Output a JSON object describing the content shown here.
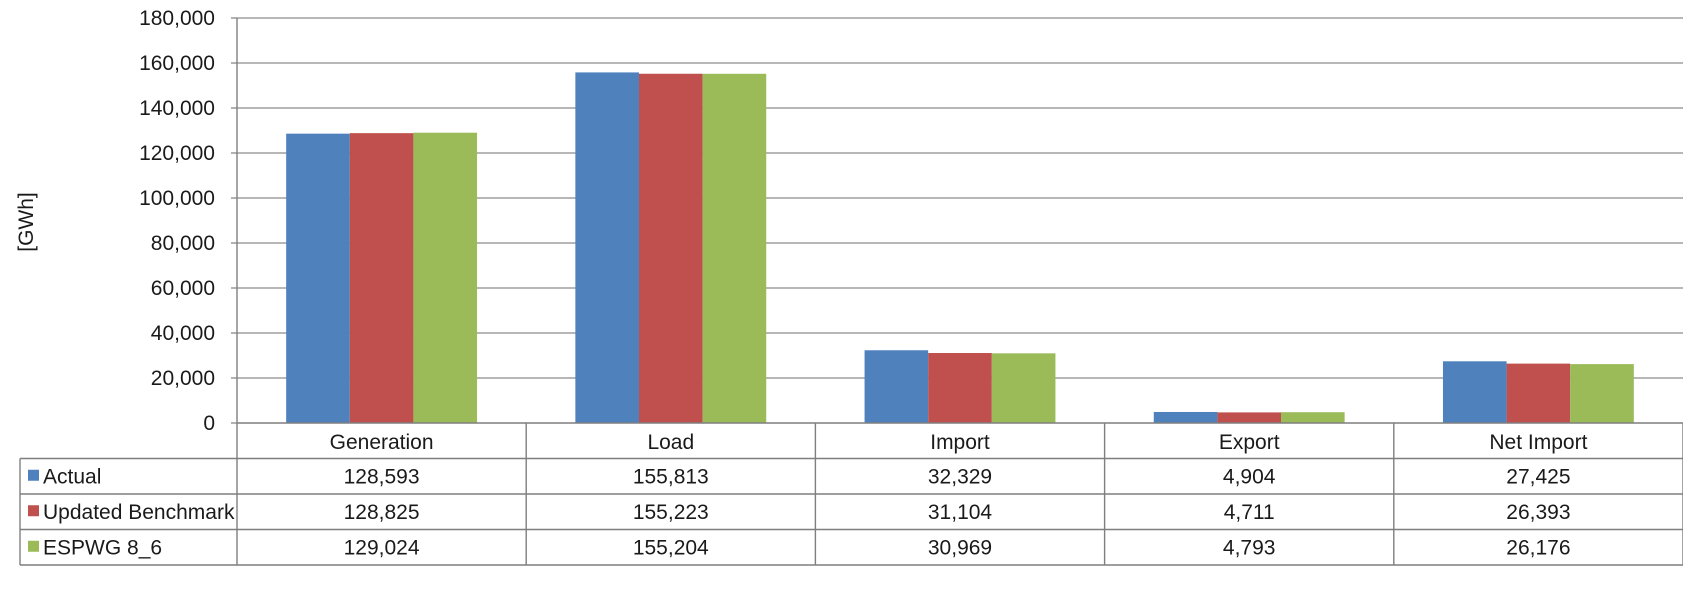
{
  "chart_data": {
    "type": "bar",
    "ylabel": "[GWh]",
    "ylim": [
      0,
      180000
    ],
    "ytick_step": 20000,
    "yticks": [
      "0",
      "20,000",
      "40,000",
      "60,000",
      "80,000",
      "100,000",
      "120,000",
      "140,000",
      "160,000",
      "180,000"
    ],
    "grid": true,
    "legend": "table-left",
    "categories": [
      "Generation",
      "Load",
      "Import",
      "Export",
      "Net Import"
    ],
    "series": [
      {
        "name": "Actual",
        "color": "#4F81BD",
        "values": [
          128593,
          155813,
          32329,
          4904,
          27425
        ],
        "labels": [
          "128,593",
          "155,813",
          "32,329",
          "4,904",
          "27,425"
        ]
      },
      {
        "name": "Updated Benchmark",
        "color": "#C0504D",
        "values": [
          128825,
          155223,
          31104,
          4711,
          26393
        ],
        "labels": [
          "128,825",
          "155,223",
          "31,104",
          "4,711",
          "26,393"
        ]
      },
      {
        "name": "ESPWG 8_6",
        "color": "#9BBB59",
        "values": [
          129024,
          155204,
          30969,
          4793,
          26176
        ],
        "labels": [
          "129,024",
          "155,204",
          "30,969",
          "4,793",
          "26,176"
        ]
      }
    ]
  }
}
